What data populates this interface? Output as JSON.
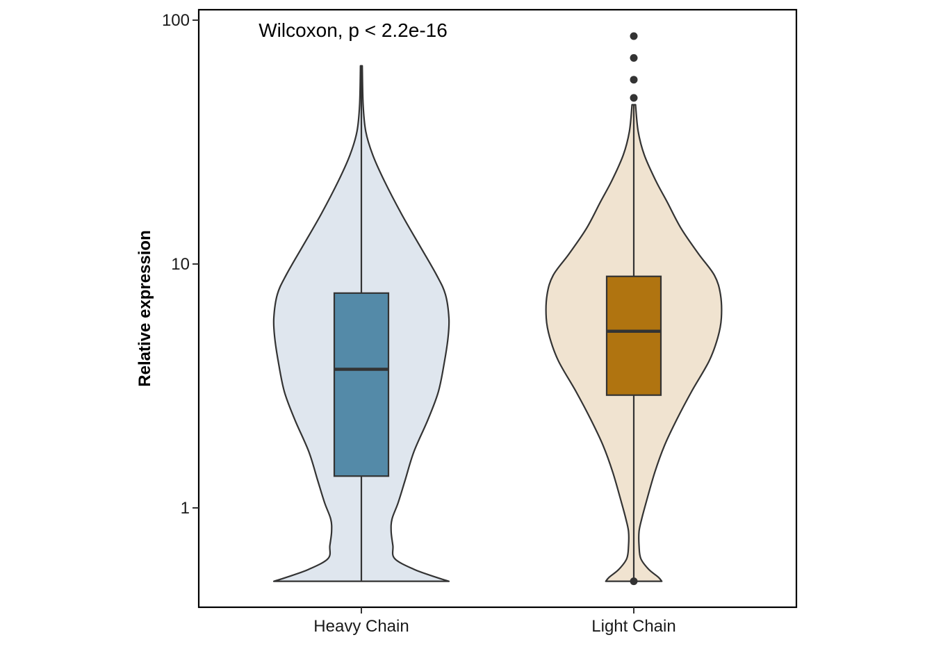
{
  "chart_data": {
    "type": "violin",
    "title": "",
    "xlabel": "",
    "ylabel": "Relative expression",
    "y_scale": "log10",
    "ylim": [
      0.41,
      115
    ],
    "y_ticks": [
      1,
      10,
      100
    ],
    "y_tick_labels": [
      "1",
      "10",
      "100"
    ],
    "annotation": "Wilcoxon, p < 2.2e-16",
    "grid": false,
    "legend": "none",
    "categories": [
      "Heavy Chain",
      "Light Chain"
    ],
    "series": [
      {
        "category": "Heavy Chain",
        "fill_color": "#dfe6ee",
        "box_color": "#548aa8",
        "box": {
          "whisker_low": 0.5,
          "q1": 1.35,
          "median": 3.7,
          "q3": 7.6,
          "whisker_high": 65
        },
        "outliers": [],
        "violin_profile": [
          [
            0.5,
            1.0
          ],
          [
            0.52,
            0.85
          ],
          [
            0.56,
            0.6
          ],
          [
            0.62,
            0.38
          ],
          [
            0.7,
            0.36
          ],
          [
            0.8,
            0.34
          ],
          [
            0.9,
            0.35
          ],
          [
            1.05,
            0.42
          ],
          [
            1.3,
            0.5
          ],
          [
            1.7,
            0.6
          ],
          [
            2.3,
            0.76
          ],
          [
            3.0,
            0.88
          ],
          [
            4.0,
            0.95
          ],
          [
            5.0,
            0.99
          ],
          [
            6.0,
            1.0
          ],
          [
            7.5,
            0.96
          ],
          [
            9.0,
            0.86
          ],
          [
            12.0,
            0.66
          ],
          [
            16.0,
            0.46
          ],
          [
            22.0,
            0.26
          ],
          [
            28.0,
            0.13
          ],
          [
            35.0,
            0.05
          ],
          [
            45.0,
            0.02
          ],
          [
            65.0,
            0.01
          ]
        ]
      },
      {
        "category": "Light Chain",
        "fill_color": "#f0e3d0",
        "box_color": "#b07410",
        "box": {
          "whisker_low": 0.5,
          "q1": 2.9,
          "median": 5.3,
          "q3": 8.9,
          "whisker_high": 45
        },
        "outliers": [
          0.5,
          48,
          57,
          70,
          86
        ],
        "violin_profile": [
          [
            0.5,
            0.32
          ],
          [
            0.52,
            0.28
          ],
          [
            0.56,
            0.17
          ],
          [
            0.62,
            0.08
          ],
          [
            0.7,
            0.06
          ],
          [
            0.8,
            0.06
          ],
          [
            0.9,
            0.09
          ],
          [
            1.05,
            0.14
          ],
          [
            1.4,
            0.24
          ],
          [
            1.8,
            0.35
          ],
          [
            2.3,
            0.49
          ],
          [
            3.0,
            0.66
          ],
          [
            4.0,
            0.86
          ],
          [
            5.0,
            0.96
          ],
          [
            6.0,
            1.0
          ],
          [
            7.5,
            0.99
          ],
          [
            9.0,
            0.92
          ],
          [
            11.0,
            0.74
          ],
          [
            14.0,
            0.54
          ],
          [
            18.0,
            0.38
          ],
          [
            22.0,
            0.25
          ],
          [
            28.0,
            0.12
          ],
          [
            35.0,
            0.05
          ],
          [
            45.0,
            0.02
          ]
        ]
      }
    ]
  },
  "colors": {
    "outline": "#333333",
    "frame": "#000000"
  }
}
